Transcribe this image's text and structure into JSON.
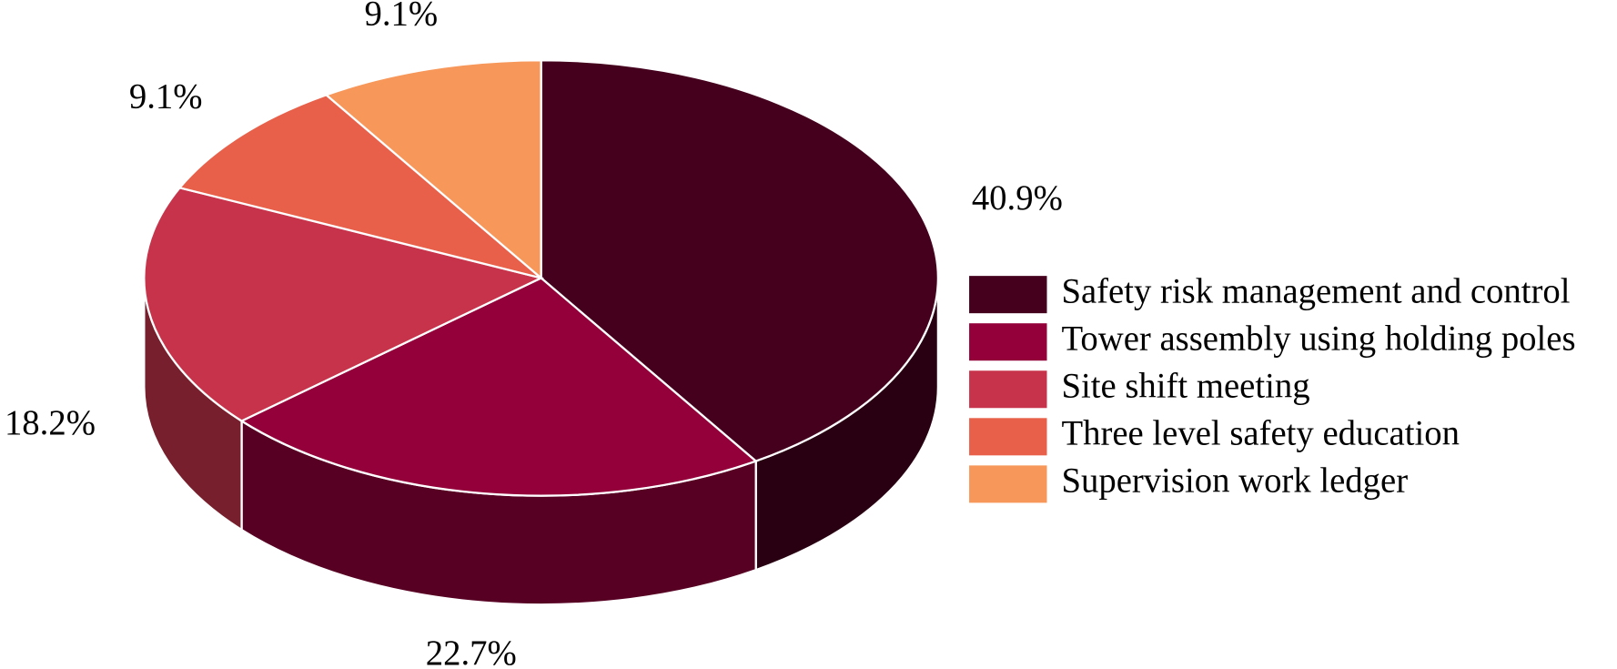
{
  "chart_data": {
    "type": "pie",
    "categories": [
      "Safety risk management and control",
      "Tower assembly using holding poles",
      "Site shift meeting",
      "Three level safety education",
      "Supervision work ledger"
    ],
    "values": [
      40.9,
      22.7,
      18.2,
      9.1,
      9.1
    ],
    "value_labels": [
      "40.9%",
      "22.7%",
      "18.2%",
      "9.1%",
      "9.1%"
    ],
    "colors": [
      "#45001e",
      "#93003a",
      "#c7334a",
      "#e8604a",
      "#f7975a"
    ]
  }
}
